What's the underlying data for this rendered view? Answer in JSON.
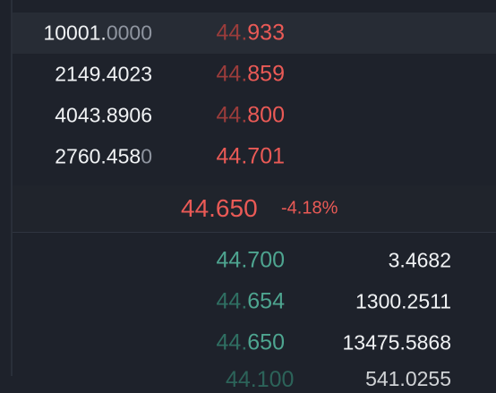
{
  "order_book": {
    "asks": [
      {
        "amount_main": "10001.",
        "amount_dim": "0000",
        "price_faded": "44.",
        "price_main": "933"
      },
      {
        "amount_main": "2149.4023",
        "amount_dim": "",
        "price_faded": "44.",
        "price_main": "859"
      },
      {
        "amount_main": "4043.8906",
        "amount_dim": "",
        "price_faded": "44.",
        "price_main": "800"
      },
      {
        "amount_main": "2760.458",
        "amount_dim": "0",
        "price_faded": "",
        "price_main": "44.701"
      }
    ],
    "mid": {
      "price": "44.650",
      "change": "-4.18%"
    },
    "bids": [
      {
        "price_faded": "",
        "price_main": "44.700",
        "amount": "3.4682"
      },
      {
        "price_faded": "44.",
        "price_main": "654",
        "amount": "1300.2511"
      },
      {
        "price_faded": "44.",
        "price_main": "650",
        "amount": "13475.5868"
      }
    ],
    "partial_bid": {
      "price": "44.100",
      "amount": "541.0255"
    }
  },
  "colors": {
    "background": "#1e222b",
    "ask": "#ea5a56",
    "bid": "#4ea590",
    "text": "#f0f2f4",
    "dim": "#8f95a0"
  }
}
